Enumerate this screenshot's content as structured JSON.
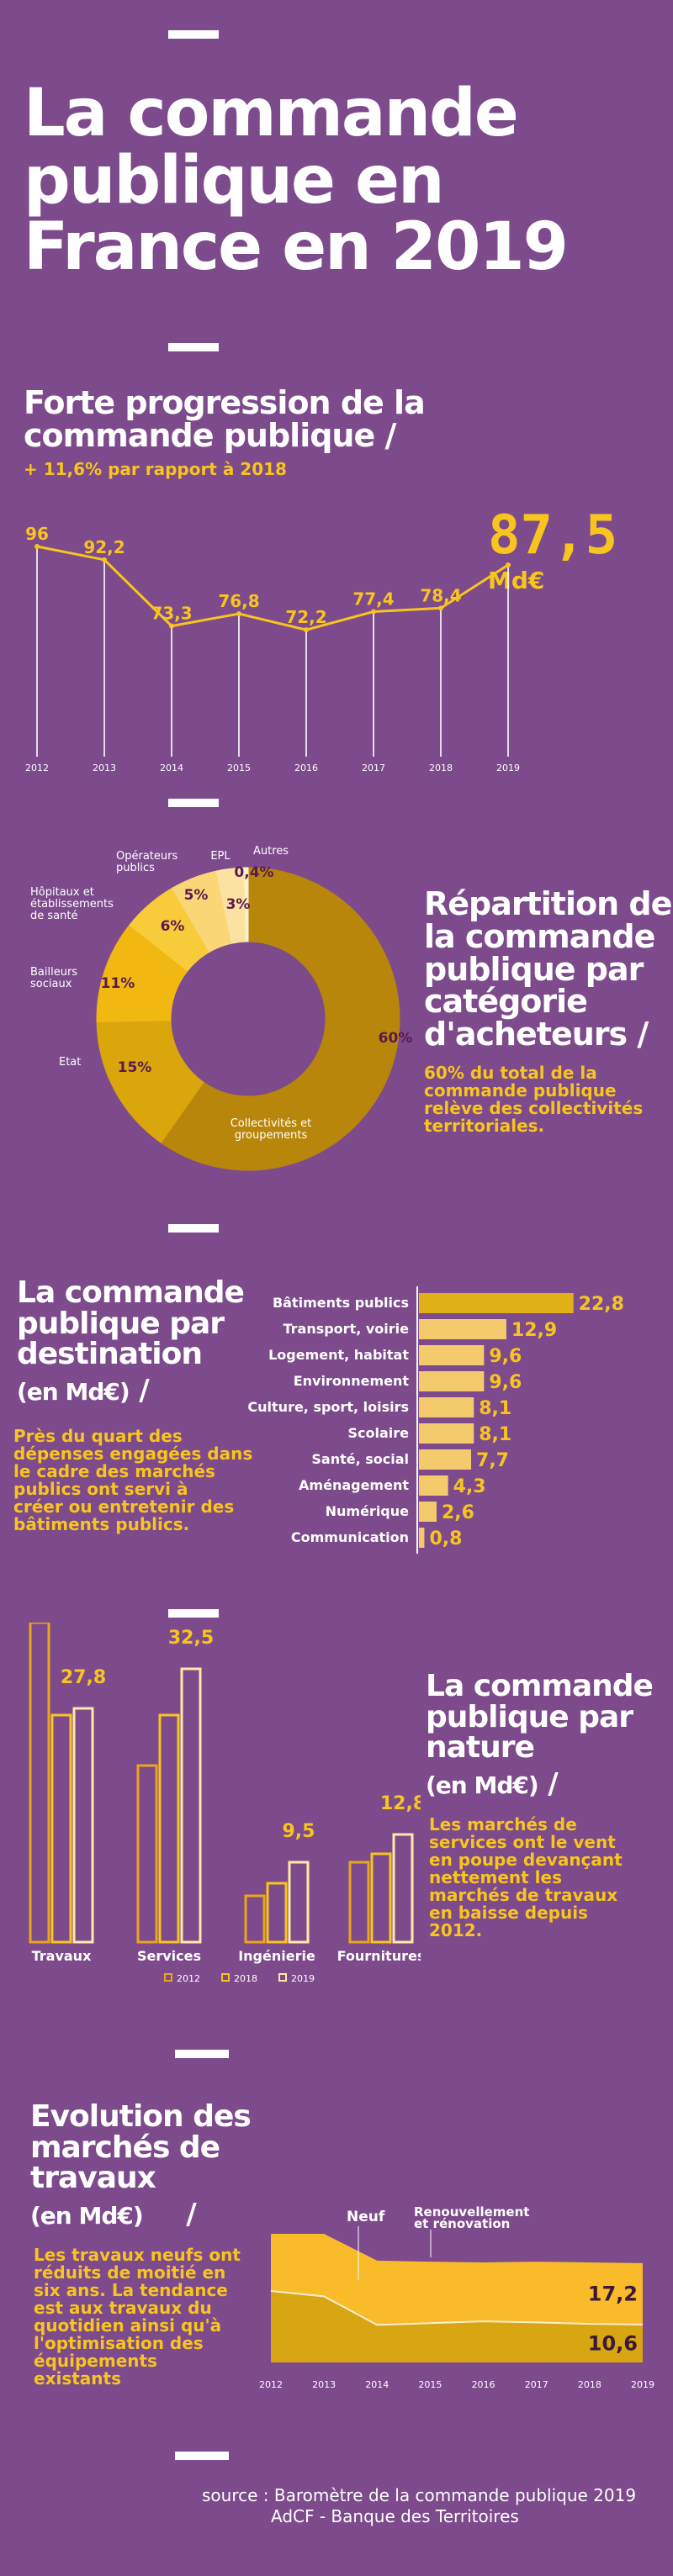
{
  "title": {
    "line1": "La commande",
    "line2": "publique en",
    "line3": "France en 2019"
  },
  "section1": {
    "title_l1": "Forte progression de la",
    "title_l2": "commande publique",
    "slash": "/",
    "subtitle": "+ 11,6% par rapport à 2018",
    "big_value": "87,5",
    "big_unit": "Md€"
  },
  "section2": {
    "title_l1": "Répartition de",
    "title_l2": "la commande",
    "title_l3": "publique par",
    "title_l4": "catégorie",
    "title_l5": "d'acheteurs",
    "slash": "/",
    "note_l1": "60% du total de la",
    "note_l2": "commande publique",
    "note_l3": "relève des collectivités",
    "note_l4": "territoriales."
  },
  "section3": {
    "title_l1": "La commande",
    "title_l2": "publique par",
    "title_l3": "destination",
    "unit": "(en Md€)",
    "slash": "/",
    "note_l1": "Près du quart des",
    "note_l2": "dépenses engagées dans",
    "note_l3": "le cadre des marchés",
    "note_l4": "publics ont servi à",
    "note_l5": "créer ou entretenir des",
    "note_l6": "bâtiments publics."
  },
  "section4": {
    "title_l1": "La commande",
    "title_l2": "publique par",
    "title_l3": "nature",
    "unit": "(en Md€)",
    "slash": "/",
    "note_l1": "Les marchés de",
    "note_l2": "services ont le vent",
    "note_l3": "en poupe devançant",
    "note_l4": "nettement les",
    "note_l5": "marchés de travaux",
    "note_l6": "en baisse depuis",
    "note_l7": "2012."
  },
  "section5": {
    "title_l1": "Evolution des",
    "title_l2": "marchés de",
    "title_l3": "travaux",
    "unit": "(en Md€)",
    "slash": "/",
    "note_l1": "Les travaux neufs ont",
    "note_l2": "réduits de moitié en",
    "note_l3": "six ans. La tendance",
    "note_l4": "est aux travaux du",
    "note_l5": "quotidien ainsi qu'à",
    "note_l6": "l'optimisation des",
    "note_l7": "équipements",
    "note_l8": "existants"
  },
  "source": {
    "line1": "source : Baromètre de la commande publique 2019",
    "line2": "AdCF - Banque des Territoires"
  },
  "colors": {
    "background": "#7d4a8c",
    "accent": "#f7c51e",
    "dark_gold": "#b8860b",
    "label_dark": "#5a1a50"
  },
  "chart_data": [
    {
      "type": "line",
      "x": [
        "2012",
        "2013",
        "2014",
        "2015",
        "2016",
        "2017",
        "2018",
        "2019"
      ],
      "values": [
        96,
        92.2,
        73.3,
        76.8,
        72.2,
        77.4,
        78.4,
        87.5
      ],
      "labels": [
        "96",
        "92,2",
        "73,3",
        "76,8",
        "72,2",
        "77,4",
        "78,4",
        "87,5"
      ],
      "ylim": [
        60,
        100
      ]
    },
    {
      "type": "pie",
      "slices": [
        {
          "name": "Collectivités et groupements",
          "value": 60,
          "label": "60%",
          "color": "#b8860b"
        },
        {
          "name": "Etat",
          "value": 15,
          "label": "15%",
          "color": "#d9a60c"
        },
        {
          "name": "Bailleurs sociaux",
          "value": 11,
          "label": "11%",
          "color": "#f1b811"
        },
        {
          "name": "Hôpitaux et établissements de santé",
          "value": 6,
          "label": "6%",
          "color": "#f7cb3a"
        },
        {
          "name": "Opérateurs publics",
          "value": 5,
          "label": "5%",
          "color": "#fad677"
        },
        {
          "name": "EPL",
          "value": 3,
          "label": "3%",
          "color": "#fce2a0"
        },
        {
          "name": "Autres",
          "value": 0.4,
          "label": "0,4%",
          "color": "#fdf0cc"
        }
      ]
    },
    {
      "type": "bar",
      "orientation": "horizontal",
      "categories": [
        "Bâtiments publics",
        "Transport, voirie",
        "Logement, habitat",
        "Environnement",
        "Culture, sport, loisirs",
        "Scolaire",
        "Santé, social",
        "Aménagement",
        "Numérique",
        "Communication"
      ],
      "values": [
        22.8,
        12.9,
        9.6,
        9.6,
        8.1,
        8.1,
        7.7,
        4.3,
        2.6,
        0.8
      ],
      "labels": [
        "22,8",
        "12,9",
        "9,6",
        "9,6",
        "8,1",
        "8,1",
        "7,7",
        "4,3",
        "2,6",
        "0,8"
      ],
      "xlim": [
        0,
        25
      ]
    },
    {
      "type": "bar",
      "categories": [
        "Travaux",
        "Services",
        "Ingénierie",
        "Fournitures"
      ],
      "series": [
        {
          "name": "2012",
          "values": [
            38,
            21,
            5.5,
            9.5
          ]
        },
        {
          "name": "2018",
          "values": [
            27,
            27,
            7,
            10.5
          ]
        },
        {
          "name": "2019",
          "values": [
            27.8,
            32.5,
            9.5,
            12.8
          ]
        }
      ],
      "labels_2019": [
        "27,8",
        "32,5",
        "9,5",
        "12,8"
      ],
      "ylim": [
        0,
        40
      ]
    },
    {
      "type": "area",
      "x": [
        "2012",
        "2013",
        "2014",
        "2015",
        "2016",
        "2017",
        "2018",
        "2019"
      ],
      "series": [
        {
          "name": "Neuf",
          "values": [
            20,
            18.5,
            10.5,
            11,
            11.5,
            11.2,
            10.8,
            10.6
          ],
          "end_label": "10,6",
          "color": "#d8a613"
        },
        {
          "name": "Renouvellement et rénovation",
          "values": [
            16,
            17.5,
            18,
            17.2,
            16.5,
            17,
            17.2,
            17.2
          ],
          "end_label": "17,2",
          "color": "#f9bb2a"
        }
      ],
      "ylim": [
        0,
        40
      ]
    }
  ]
}
